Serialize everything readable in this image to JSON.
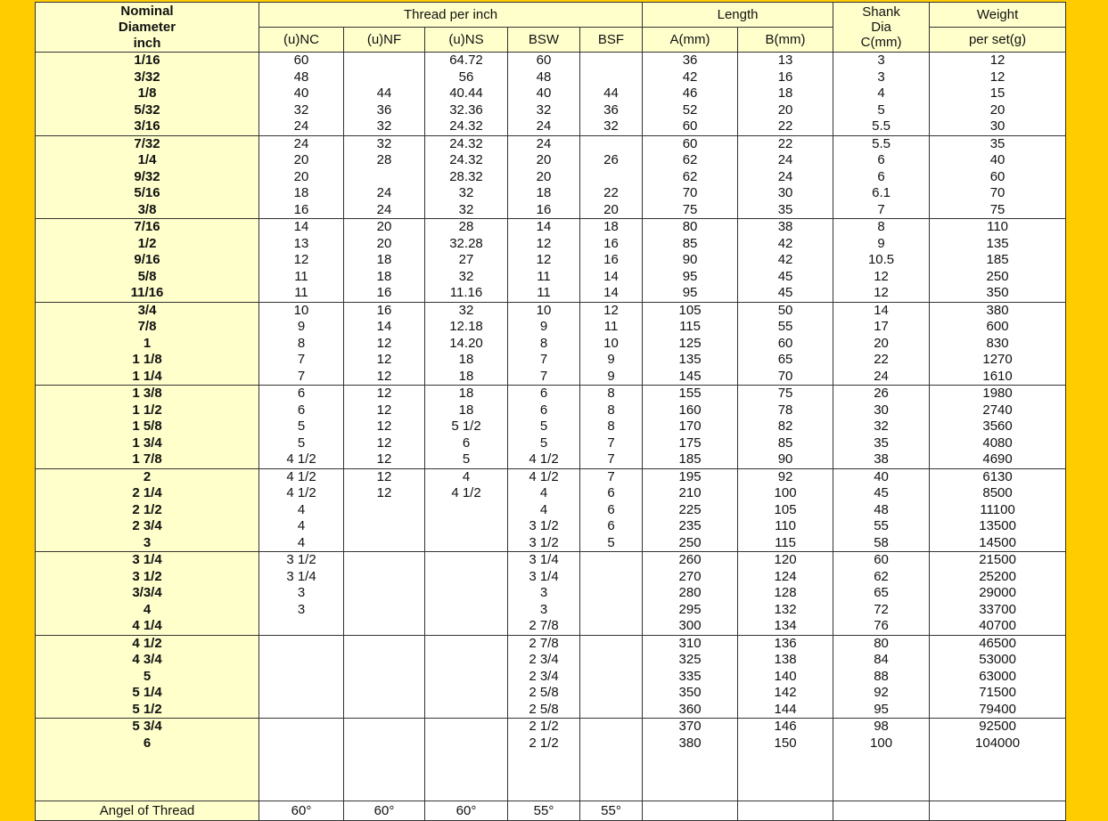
{
  "header": {
    "nominal": "Nominal Diameter inch",
    "nominal_lines": [
      "Nominal",
      "Diameter",
      "inch"
    ],
    "thread_per_inch": "Thread per inch",
    "length": "Length",
    "shank_lines": [
      "Shank",
      "Dia",
      "C(mm)"
    ],
    "weight": "Weight",
    "sub": [
      "(u)NC",
      "(u)NF",
      "(u)NS",
      "BSW",
      "BSF",
      "A(mm)",
      "B(mm)",
      "per set(g)"
    ]
  },
  "rows": [
    [
      "1/16",
      "60",
      "",
      "64.72",
      "60",
      "",
      "36",
      "13",
      "3",
      "12"
    ],
    [
      "3/32",
      "48",
      "",
      "56",
      "48",
      "",
      "42",
      "16",
      "3",
      "12"
    ],
    [
      "1/8",
      "40",
      "44",
      "40.44",
      "40",
      "44",
      "46",
      "18",
      "4",
      "15"
    ],
    [
      "5/32",
      "32",
      "36",
      "32.36",
      "32",
      "36",
      "52",
      "20",
      "5",
      "20"
    ],
    [
      "3/16",
      "24",
      "32",
      "24.32",
      "24",
      "32",
      "60",
      "22",
      "5.5",
      "30"
    ],
    [
      "7/32",
      "24",
      "32",
      "24.32",
      "24",
      "",
      "60",
      "22",
      "5.5",
      "35"
    ],
    [
      "1/4",
      "20",
      "28",
      "24.32",
      "20",
      "26",
      "62",
      "24",
      "6",
      "40"
    ],
    [
      "9/32",
      "20",
      "",
      "28.32",
      "20",
      "",
      "62",
      "24",
      "6",
      "60"
    ],
    [
      "5/16",
      "18",
      "24",
      "32",
      "18",
      "22",
      "70",
      "30",
      "6.1",
      "70"
    ],
    [
      "3/8",
      "16",
      "24",
      "32",
      "16",
      "20",
      "75",
      "35",
      "7",
      "75"
    ],
    [
      "7/16",
      "14",
      "20",
      "28",
      "14",
      "18",
      "80",
      "38",
      "8",
      "110"
    ],
    [
      "1/2",
      "13",
      "20",
      "32.28",
      "12",
      "16",
      "85",
      "42",
      "9",
      "135"
    ],
    [
      "9/16",
      "12",
      "18",
      "27",
      "12",
      "16",
      "90",
      "42",
      "10.5",
      "185"
    ],
    [
      "5/8",
      "11",
      "18",
      "32",
      "11",
      "14",
      "95",
      "45",
      "12",
      "250"
    ],
    [
      "11/16",
      "11",
      "16",
      "11.16",
      "11",
      "14",
      "95",
      "45",
      "12",
      "350"
    ],
    [
      "3/4",
      "10",
      "16",
      "32",
      "10",
      "12",
      "105",
      "50",
      "14",
      "380"
    ],
    [
      "7/8",
      "9",
      "14",
      "12.18",
      "9",
      "11",
      "115",
      "55",
      "17",
      "600"
    ],
    [
      "1",
      "8",
      "12",
      "14.20",
      "8",
      "10",
      "125",
      "60",
      "20",
      "830"
    ],
    [
      "1 1/8",
      "7",
      "12",
      "18",
      "7",
      "9",
      "135",
      "65",
      "22",
      "1270"
    ],
    [
      "1 1/4",
      "7",
      "12",
      "18",
      "7",
      "9",
      "145",
      "70",
      "24",
      "1610"
    ],
    [
      "1 3/8",
      "6",
      "12",
      "18",
      "6",
      "8",
      "155",
      "75",
      "26",
      "1980"
    ],
    [
      "1 1/2",
      "6",
      "12",
      "18",
      "6",
      "8",
      "160",
      "78",
      "30",
      "2740"
    ],
    [
      "1 5/8",
      "5",
      "12",
      "5 1/2",
      "5",
      "8",
      "170",
      "82",
      "32",
      "3560"
    ],
    [
      "1 3/4",
      "5",
      "12",
      "6",
      "5",
      "7",
      "175",
      "85",
      "35",
      "4080"
    ],
    [
      "1 7/8",
      "4 1/2",
      "12",
      "5",
      "4 1/2",
      "7",
      "185",
      "90",
      "38",
      "4690"
    ],
    [
      "2",
      "4 1/2",
      "12",
      "4",
      "4 1/2",
      "7",
      "195",
      "92",
      "40",
      "6130"
    ],
    [
      "2 1/4",
      "4 1/2",
      "12",
      "4 1/2",
      "4",
      "6",
      "210",
      "100",
      "45",
      "8500"
    ],
    [
      "2 1/2",
      "4",
      "",
      "",
      "4",
      "6",
      "225",
      "105",
      "48",
      "11100"
    ],
    [
      "2 3/4",
      "4",
      "",
      "",
      "3 1/2",
      "6",
      "235",
      "110",
      "55",
      "13500"
    ],
    [
      "3",
      "4",
      "",
      "",
      "3 1/2",
      "5",
      "250",
      "115",
      "58",
      "14500"
    ],
    [
      "3 1/4",
      "3 1/2",
      "",
      "",
      "3 1/4",
      "",
      "260",
      "120",
      "60",
      "21500"
    ],
    [
      "3 1/2",
      "3 1/4",
      "",
      "",
      "3 1/4",
      "",
      "270",
      "124",
      "62",
      "25200"
    ],
    [
      "3/3/4",
      "3",
      "",
      "",
      "3",
      "",
      "280",
      "128",
      "65",
      "29000"
    ],
    [
      "4",
      "3",
      "",
      "",
      "3",
      "",
      "295",
      "132",
      "72",
      "33700"
    ],
    [
      "4 1/4",
      "",
      "",
      "",
      "2 7/8",
      "",
      "300",
      "134",
      "76",
      "40700"
    ],
    [
      "4 1/2",
      "",
      "",
      "",
      "2 7/8",
      "",
      "310",
      "136",
      "80",
      "46500"
    ],
    [
      "4 3/4",
      "",
      "",
      "",
      "2 3/4",
      "",
      "325",
      "138",
      "84",
      "53000"
    ],
    [
      "5",
      "",
      "",
      "",
      "2 3/4",
      "",
      "335",
      "140",
      "88",
      "63000"
    ],
    [
      "5 1/4",
      "",
      "",
      "",
      "2 5/8",
      "",
      "350",
      "142",
      "92",
      "71500"
    ],
    [
      "5 1/2",
      "",
      "",
      "",
      "2 5/8",
      "",
      "360",
      "144",
      "95",
      "79400"
    ],
    [
      "5 3/4",
      "",
      "",
      "",
      "2 1/2",
      "",
      "370",
      "146",
      "98",
      "92500"
    ],
    [
      "6",
      "",
      "",
      "",
      "2 1/2",
      "",
      "380",
      "150",
      "100",
      "104000"
    ]
  ],
  "footer": [
    "Angel of Thread",
    "60°",
    "60°",
    "60°",
    "55°",
    "55°",
    "",
    "",
    "",
    ""
  ]
}
